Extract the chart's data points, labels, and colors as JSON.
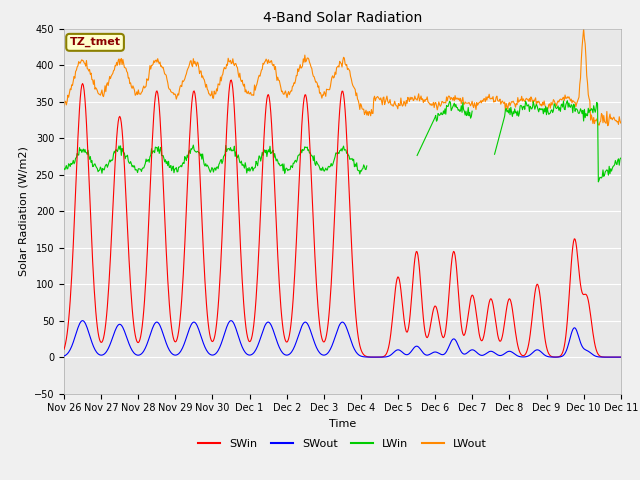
{
  "title": "4-Band Solar Radiation",
  "xlabel": "Time",
  "ylabel": "Solar Radiation (W/m2)",
  "ylim": [
    -50,
    450
  ],
  "xlim": [
    0,
    360
  ],
  "fig_bg_color": "#f0f0f0",
  "plot_bg_color": "#e8e8e8",
  "annotation_label": "TZ_tmet",
  "annotation_box_color": "#ffffcc",
  "annotation_box_edge": "#8B8000",
  "annotation_text_color": "#8B0000",
  "x_tick_labels": [
    "Nov 26",
    "Nov 27",
    "Nov 28",
    "Nov 29",
    "Nov 30",
    "Dec 1",
    "Dec 2",
    "Dec 3",
    "Dec 4",
    "Dec 5",
    "Dec 6",
    "Dec 7",
    "Dec 8",
    "Dec 9",
    "Dec 10",
    "Dec 11"
  ],
  "x_tick_positions": [
    0,
    24,
    48,
    72,
    96,
    120,
    144,
    168,
    192,
    216,
    240,
    264,
    288,
    312,
    336,
    360
  ],
  "legend_entries": [
    "SWin",
    "SWout",
    "LWin",
    "LWout"
  ],
  "colors": {
    "SWin": "#ff0000",
    "SWout": "#0000ff",
    "LWin": "#00cc00",
    "LWout": "#ff8800"
  },
  "yticks": [
    -50,
    0,
    50,
    100,
    150,
    200,
    250,
    300,
    350,
    400,
    450
  ],
  "title_fontsize": 10,
  "axis_label_fontsize": 8,
  "tick_fontsize": 7,
  "legend_fontsize": 8
}
